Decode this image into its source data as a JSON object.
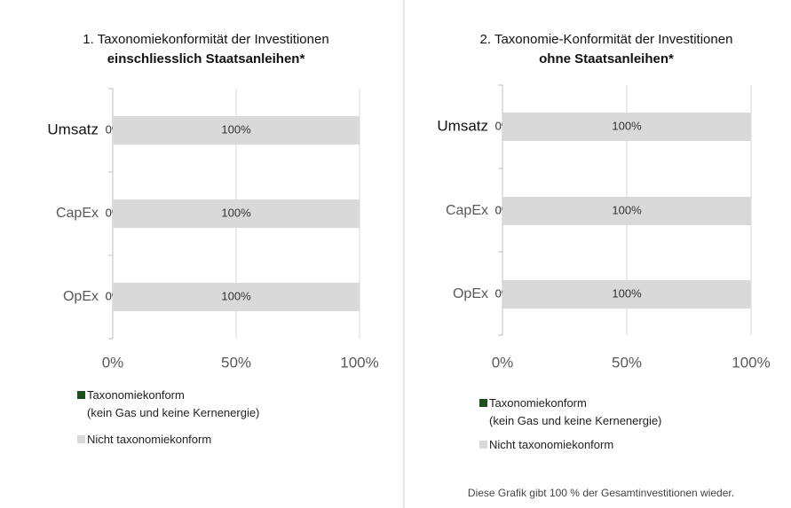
{
  "chart_data": [
    {
      "type": "bar",
      "orientation": "horizontal",
      "stacked": true,
      "title": "1. Taxonomiekonformität der Investitionen",
      "subtitle": "einschliesslich Staatsanleihen*",
      "categories": [
        "Umsatz",
        "CapEx",
        "OpEx"
      ],
      "series": [
        {
          "name": "Taxonomiekonform\n(kein Gas und keine Kernenergie)",
          "color": "#1e4d1e",
          "values": [
            0,
            0,
            0
          ],
          "value_labels": [
            "0%",
            "0%",
            "0%"
          ]
        },
        {
          "name": "Nicht taxonomiekonform",
          "color": "#d9d9d9",
          "values": [
            100,
            100,
            100
          ],
          "value_labels": [
            "100%",
            "100%",
            "100%"
          ]
        }
      ],
      "xlim": [
        0,
        100
      ],
      "xticks": [
        {
          "value": 0,
          "label": "0%"
        },
        {
          "value": 50,
          "label": "50%"
        },
        {
          "value": 100,
          "label": "100%"
        }
      ],
      "grid": true
    },
    {
      "type": "bar",
      "orientation": "horizontal",
      "stacked": true,
      "title": "2. Taxonomie-Konformität der Investitionen",
      "subtitle": "ohne Staatsanleihen*",
      "categories": [
        "Umsatz",
        "CapEx",
        "OpEx"
      ],
      "series": [
        {
          "name": "Taxonomiekonform\n(kein Gas und keine Kernenergie)",
          "color": "#1e4d1e",
          "values": [
            0,
            0,
            0
          ],
          "value_labels": [
            "0%",
            "0%",
            "0%"
          ]
        },
        {
          "name": "Nicht taxonomiekonform",
          "color": "#d9d9d9",
          "values": [
            100,
            100,
            100
          ],
          "value_labels": [
            "100%",
            "100%",
            "100%"
          ]
        }
      ],
      "xlim": [
        0,
        100
      ],
      "xticks": [
        {
          "value": 0,
          "label": "0%"
        },
        {
          "value": 50,
          "label": "50%"
        },
        {
          "value": 100,
          "label": "100%"
        }
      ],
      "grid": true,
      "note": "Diese Grafik gibt 100 % der Gesamtinvestitionen wieder."
    }
  ]
}
